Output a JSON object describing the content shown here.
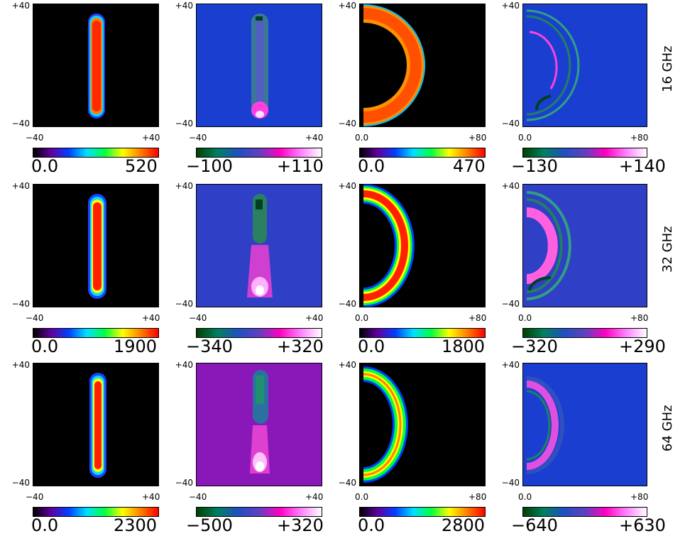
{
  "axes": {
    "y_top": "+40",
    "y_bottom": "−40",
    "x_sym_left": "−40",
    "x_sym_right": "+40",
    "x_half_left": "0.0",
    "x_half_right": "+80"
  },
  "rows": [
    {
      "label": "16 GHz",
      "panels": [
        {
          "cb_min": "0.0",
          "cb_max": "520"
        },
        {
          "cb_min": "−100",
          "cb_max": "+110"
        },
        {
          "cb_min": "0.0",
          "cb_max": "470"
        },
        {
          "cb_min": "−130",
          "cb_max": "+140"
        }
      ]
    },
    {
      "label": "32 GHz",
      "panels": [
        {
          "cb_min": "0.0",
          "cb_max": "1900"
        },
        {
          "cb_min": "−340",
          "cb_max": "+320"
        },
        {
          "cb_min": "0.0",
          "cb_max": "1800"
        },
        {
          "cb_min": "−320",
          "cb_max": "+290"
        }
      ]
    },
    {
      "label": "64 GHz",
      "panels": [
        {
          "cb_min": "0.0",
          "cb_max": "2300"
        },
        {
          "cb_min": "−500",
          "cb_max": "+320"
        },
        {
          "cb_min": "0.0",
          "cb_max": "2800"
        },
        {
          "cb_min": "−640",
          "cb_max": "+630"
        }
      ]
    }
  ],
  "colors": {
    "bg_black": "#000000",
    "blue_bg": "#1a3fd0",
    "purple_bg_32": "#2f3fc6",
    "purple_bg_64": "#8a18b8",
    "jet_red": "#ff2000",
    "jet_orange": "#ff8800",
    "jet_yellow": "#ffff00",
    "jet_green": "#00ff40",
    "jet_cyan": "#00e0ff",
    "magenta": "#ff30e0",
    "dark_green": "#006040"
  }
}
